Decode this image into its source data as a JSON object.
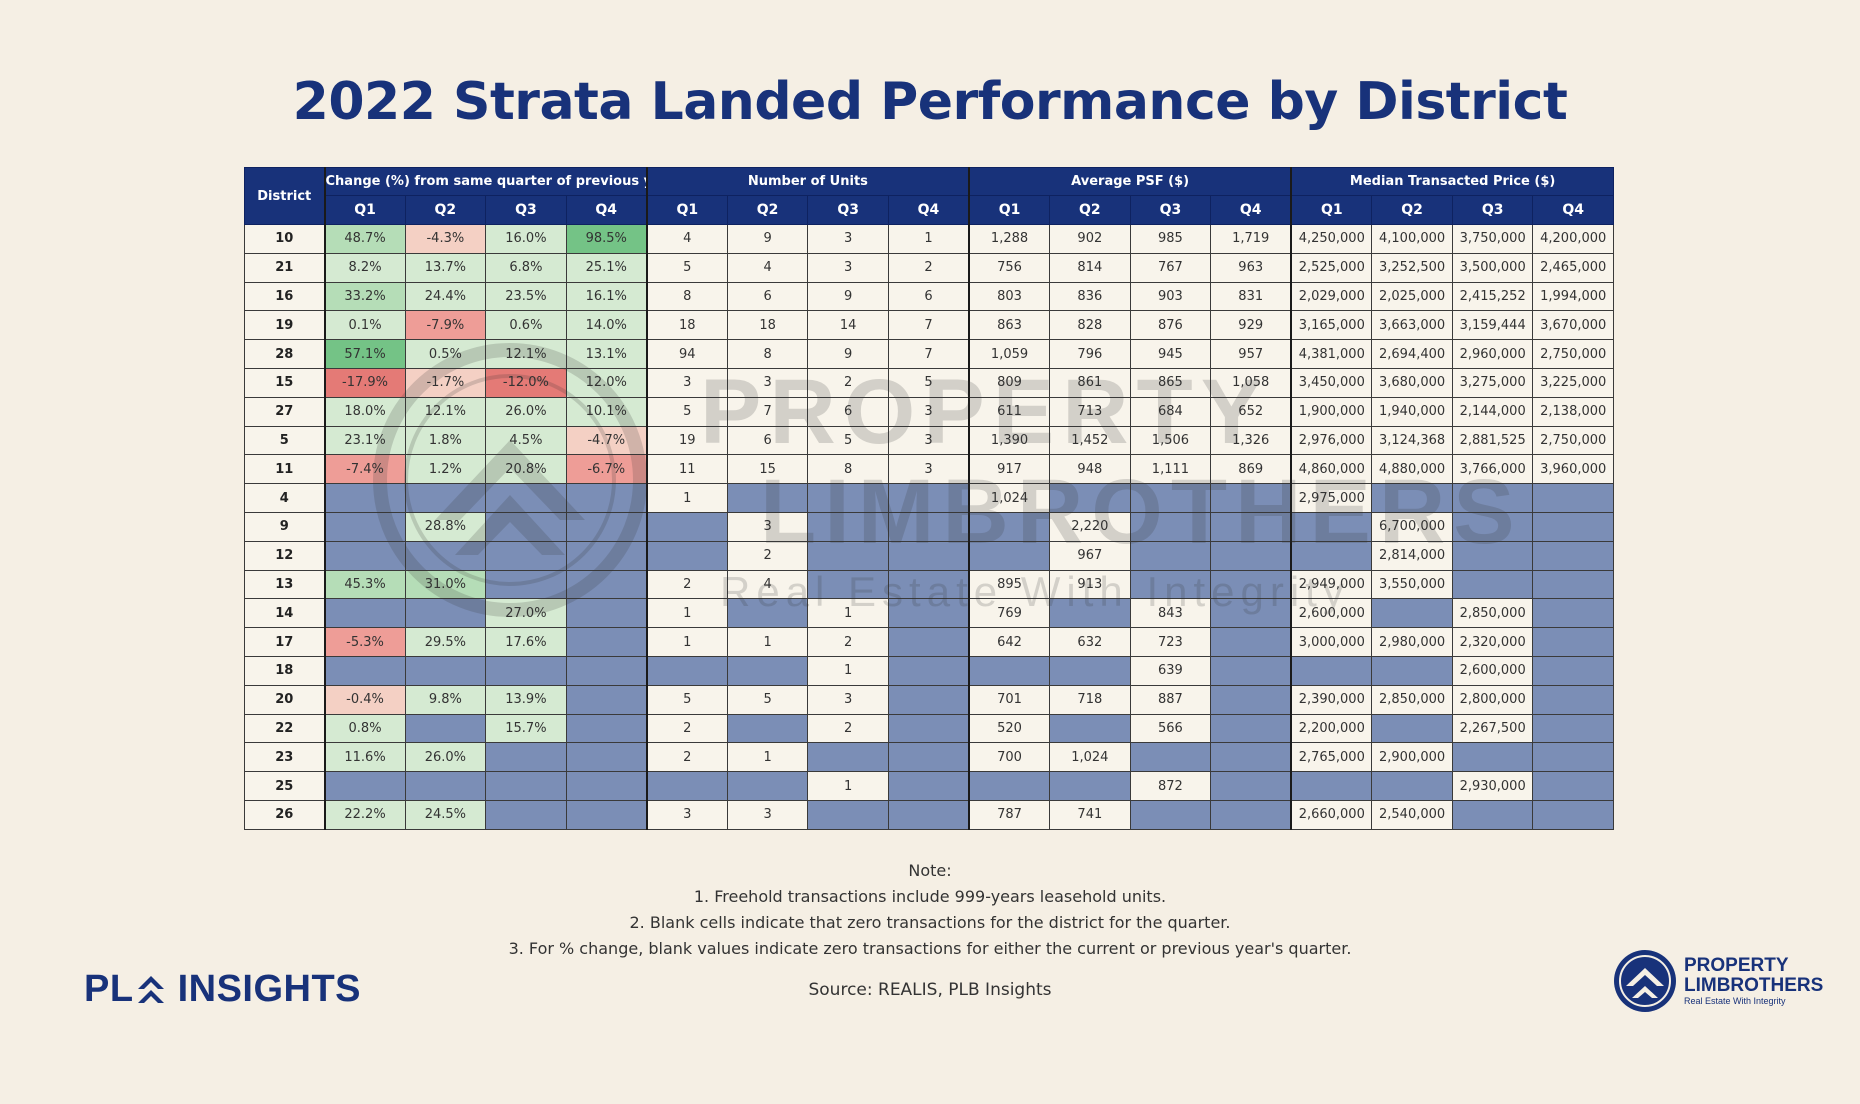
{
  "title": "2022 Strata Landed Performance by District",
  "table": {
    "district_header": "District",
    "groups": [
      "Change (%) from same quarter of previous year",
      "Number of Units",
      "Average PSF ($)",
      "Median Transacted Price ($)"
    ],
    "quarters": [
      "Q1",
      "Q2",
      "Q3",
      "Q4"
    ],
    "rows": [
      {
        "d": "10",
        "chg": [
          "48.7%",
          "-4.3%",
          "16.0%",
          "98.5%"
        ],
        "units": [
          "4",
          "9",
          "3",
          "1"
        ],
        "psf": [
          "1,288",
          "902",
          "985",
          "1,719"
        ],
        "price": [
          "4,250,000",
          "4,100,000",
          "3,750,000",
          "4,200,000"
        ]
      },
      {
        "d": "21",
        "chg": [
          "8.2%",
          "13.7%",
          "6.8%",
          "25.1%"
        ],
        "units": [
          "5",
          "4",
          "3",
          "2"
        ],
        "psf": [
          "756",
          "814",
          "767",
          "963"
        ],
        "price": [
          "2,525,000",
          "3,252,500",
          "3,500,000",
          "2,465,000"
        ]
      },
      {
        "d": "16",
        "chg": [
          "33.2%",
          "24.4%",
          "23.5%",
          "16.1%"
        ],
        "units": [
          "8",
          "6",
          "9",
          "6"
        ],
        "psf": [
          "803",
          "836",
          "903",
          "831"
        ],
        "price": [
          "2,029,000",
          "2,025,000",
          "2,415,252",
          "1,994,000"
        ]
      },
      {
        "d": "19",
        "chg": [
          "0.1%",
          "-7.9%",
          "0.6%",
          "14.0%"
        ],
        "units": [
          "18",
          "18",
          "14",
          "7"
        ],
        "psf": [
          "863",
          "828",
          "876",
          "929"
        ],
        "price": [
          "3,165,000",
          "3,663,000",
          "3,159,444",
          "3,670,000"
        ]
      },
      {
        "d": "28",
        "chg": [
          "57.1%",
          "0.5%",
          "12.1%",
          "13.1%"
        ],
        "units": [
          "94",
          "8",
          "9",
          "7"
        ],
        "psf": [
          "1,059",
          "796",
          "945",
          "957"
        ],
        "price": [
          "4,381,000",
          "2,694,400",
          "2,960,000",
          "2,750,000"
        ]
      },
      {
        "d": "15",
        "chg": [
          "-17.9%",
          "-1.7%",
          "-12.0%",
          "12.0%"
        ],
        "units": [
          "3",
          "3",
          "2",
          "5"
        ],
        "psf": [
          "809",
          "861",
          "865",
          "1,058"
        ],
        "price": [
          "3,450,000",
          "3,680,000",
          "3,275,000",
          "3,225,000"
        ]
      },
      {
        "d": "27",
        "chg": [
          "18.0%",
          "12.1%",
          "26.0%",
          "10.1%"
        ],
        "units": [
          "5",
          "7",
          "6",
          "3"
        ],
        "psf": [
          "611",
          "713",
          "684",
          "652"
        ],
        "price": [
          "1,900,000",
          "1,940,000",
          "2,144,000",
          "2,138,000"
        ]
      },
      {
        "d": "5",
        "chg": [
          "23.1%",
          "1.8%",
          "4.5%",
          "-4.7%"
        ],
        "units": [
          "19",
          "6",
          "5",
          "3"
        ],
        "psf": [
          "1,390",
          "1,452",
          "1,506",
          "1,326"
        ],
        "price": [
          "2,976,000",
          "3,124,368",
          "2,881,525",
          "2,750,000"
        ]
      },
      {
        "d": "11",
        "chg": [
          "-7.4%",
          "1.2%",
          "20.8%",
          "-6.7%"
        ],
        "units": [
          "11",
          "15",
          "8",
          "3"
        ],
        "psf": [
          "917",
          "948",
          "1,111",
          "869"
        ],
        "price": [
          "4,860,000",
          "4,880,000",
          "3,766,000",
          "3,960,000"
        ]
      },
      {
        "d": "4",
        "chg": [
          "",
          "",
          "",
          ""
        ],
        "units": [
          "1",
          "",
          "",
          ""
        ],
        "psf": [
          "1,024",
          "",
          "",
          ""
        ],
        "price": [
          "2,975,000",
          "",
          "",
          ""
        ]
      },
      {
        "d": "9",
        "chg": [
          "",
          "28.8%",
          "",
          ""
        ],
        "units": [
          "",
          "3",
          "",
          ""
        ],
        "psf": [
          "",
          "2,220",
          "",
          ""
        ],
        "price": [
          "",
          "6,700,000",
          "",
          ""
        ]
      },
      {
        "d": "12",
        "chg": [
          "",
          "",
          "",
          ""
        ],
        "units": [
          "",
          "2",
          "",
          ""
        ],
        "psf": [
          "",
          "967",
          "",
          ""
        ],
        "price": [
          "",
          "2,814,000",
          "",
          ""
        ]
      },
      {
        "d": "13",
        "chg": [
          "45.3%",
          "31.0%",
          "",
          ""
        ],
        "units": [
          "2",
          "4",
          "",
          ""
        ],
        "psf": [
          "895",
          "913",
          "",
          ""
        ],
        "price": [
          "2,949,000",
          "3,550,000",
          "",
          ""
        ]
      },
      {
        "d": "14",
        "chg": [
          "",
          "",
          "27.0%",
          ""
        ],
        "units": [
          "1",
          "",
          "1",
          ""
        ],
        "psf": [
          "769",
          "",
          "843",
          ""
        ],
        "price": [
          "2,600,000",
          "",
          "2,850,000",
          ""
        ]
      },
      {
        "d": "17",
        "chg": [
          "-5.3%",
          "29.5%",
          "17.6%",
          ""
        ],
        "units": [
          "1",
          "1",
          "2",
          ""
        ],
        "psf": [
          "642",
          "632",
          "723",
          ""
        ],
        "price": [
          "3,000,000",
          "2,980,000",
          "2,320,000",
          ""
        ]
      },
      {
        "d": "18",
        "chg": [
          "",
          "",
          "",
          ""
        ],
        "units": [
          "",
          "",
          "1",
          ""
        ],
        "psf": [
          "",
          "",
          "639",
          ""
        ],
        "price": [
          "",
          "",
          "2,600,000",
          ""
        ]
      },
      {
        "d": "20",
        "chg": [
          "-0.4%",
          "9.8%",
          "13.9%",
          ""
        ],
        "units": [
          "5",
          "5",
          "3",
          ""
        ],
        "psf": [
          "701",
          "718",
          "887",
          ""
        ],
        "price": [
          "2,390,000",
          "2,850,000",
          "2,800,000",
          ""
        ]
      },
      {
        "d": "22",
        "chg": [
          "0.8%",
          "",
          "15.7%",
          ""
        ],
        "units": [
          "2",
          "",
          "2",
          ""
        ],
        "psf": [
          "520",
          "",
          "566",
          ""
        ],
        "price": [
          "2,200,000",
          "",
          "2,267,500",
          ""
        ]
      },
      {
        "d": "23",
        "chg": [
          "11.6%",
          "26.0%",
          "",
          ""
        ],
        "units": [
          "2",
          "1",
          "",
          ""
        ],
        "psf": [
          "700",
          "1,024",
          "",
          ""
        ],
        "price": [
          "2,765,000",
          "2,900,000",
          "",
          ""
        ]
      },
      {
        "d": "25",
        "chg": [
          "",
          "",
          "",
          ""
        ],
        "units": [
          "",
          "",
          "1",
          ""
        ],
        "psf": [
          "",
          "",
          "872",
          ""
        ],
        "price": [
          "",
          "",
          "2,930,000",
          ""
        ]
      },
      {
        "d": "26",
        "chg": [
          "22.2%",
          "24.5%",
          "",
          ""
        ],
        "units": [
          "3",
          "3",
          "",
          ""
        ],
        "psf": [
          "787",
          "741",
          "",
          ""
        ],
        "price": [
          "2,660,000",
          "2,540,000",
          "",
          ""
        ]
      }
    ]
  },
  "watermark": {
    "line1": "PROPERTY",
    "line2": "LIMBROTHERS",
    "line3": "Real Estate With Integrity"
  },
  "notes": {
    "heading": "Note:",
    "items": [
      "1. Freehold transactions include 999-years leasehold units.",
      "2. Blank cells indicate that zero transactions for the district for the quarter.",
      "3. For % change, blank values indicate zero transactions for either the current or previous year's quarter."
    ]
  },
  "source": "Source: REALIS, PLB Insights",
  "logo_left": {
    "part1": "PL",
    "part2": "INSIGHTS"
  },
  "logo_right": {
    "line1": "PROPERTY",
    "line2": "LIMBROTHERS",
    "tagline": "Real Estate With Integrity"
  },
  "colors": {
    "brand_navy": "#18327a",
    "blank_cell": "#7b8eb6",
    "positive_light": "#d5ead2",
    "positive_strong": "#74c386",
    "negative_light": "#f4d0c4",
    "negative_strong": "#e47a76",
    "background": "#f5efe4"
  }
}
